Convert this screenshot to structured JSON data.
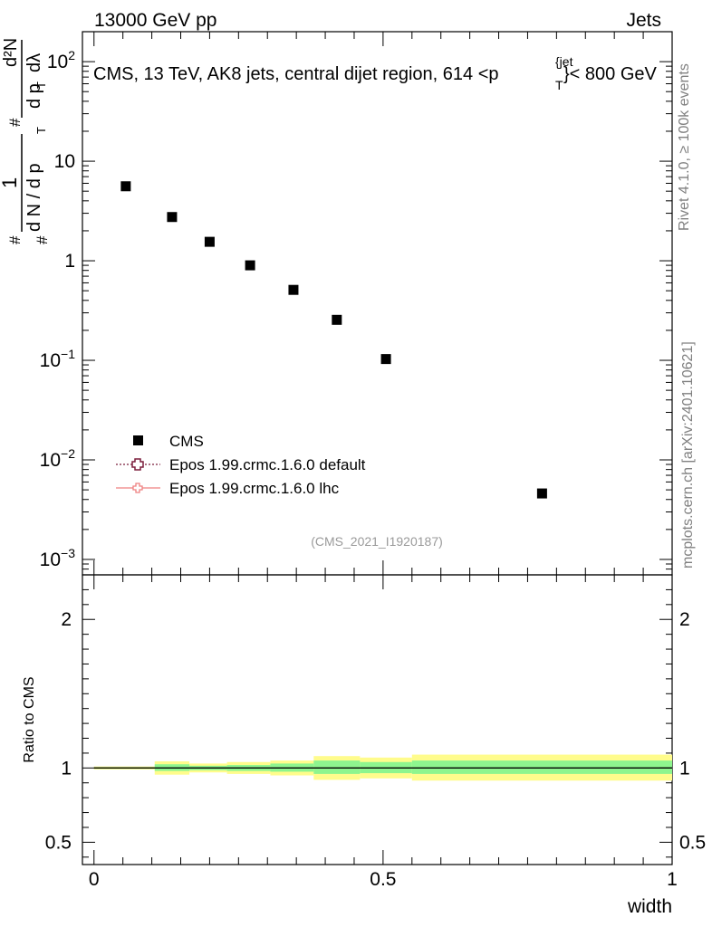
{
  "header": {
    "left": "13000 GeV pp",
    "right": "Jets"
  },
  "side_labels": {
    "rivet": "Rivet 4.1.0, ≥ 100k events",
    "mcplots": "mcplots.cern.ch [arXiv:2401.10621]"
  },
  "colors": {
    "data": "#000000",
    "epos_default": "#7b1d3c",
    "epos_lhc": "#ef8080",
    "band_inner": "#8ef58e",
    "band_outer": "#fffc8c"
  },
  "chart_data": [
    {
      "type": "scatter",
      "panel": "main",
      "title": "CMS, 13 TeV, AK8 jets, central dijet region, 614 <p_T^{jet}< 800 GeV",
      "title_parts": [
        "CMS, 13 TeV, AK8 jets, central dijet region, 614 <p",
        "{jet",
        "T",
        "}< 800 GeV"
      ],
      "ylabel": "1/(dN/dp_T) d²N/(dp_T dλ)",
      "ylabel_parts": {
        "frac1_num": "1",
        "frac1_den": "d N / d p",
        "frac2_num": "d²N",
        "frac2_den": "d p",
        "frac2_den_tail": "dλ",
        "sub": "T",
        "hash": "#"
      },
      "xlim": [
        -0.02,
        1.0
      ],
      "ylim": [
        0.0007,
        200
      ],
      "yscale": "log",
      "y_ticks": [
        {
          "value": 100,
          "mantissa": "10",
          "exp": "2"
        },
        {
          "value": 10,
          "mantissa": "10",
          "exp": ""
        },
        {
          "value": 1,
          "mantissa": "1",
          "exp": ""
        },
        {
          "value": 0.1,
          "mantissa": "10",
          "exp": "−1"
        },
        {
          "value": 0.01,
          "mantissa": "10",
          "exp": "−2"
        },
        {
          "value": 0.001,
          "mantissa": "10",
          "exp": "−3"
        }
      ],
      "series": [
        {
          "name": "CMS",
          "x": [
            0.055,
            0.135,
            0.2,
            0.27,
            0.345,
            0.42,
            0.505,
            0.775
          ],
          "y": [
            5.6,
            2.75,
            1.55,
            0.9,
            0.51,
            0.255,
            0.103,
            0.0046
          ]
        },
        {
          "name": "Epos 1.99.crmc.1.6.0 default",
          "x": [],
          "y": []
        },
        {
          "name": "Epos 1.99.crmc.1.6.0 lhc",
          "x": [],
          "y": []
        }
      ],
      "legend": [
        "CMS",
        "Epos 1.99.crmc.1.6.0 default",
        "Epos 1.99.crmc.1.6.0 lhc"
      ],
      "legend_position": "bottom-left",
      "watermark": "(CMS_2021_I1920187)"
    },
    {
      "type": "area",
      "panel": "ratio",
      "ylabel": "Ratio to CMS",
      "xlabel": "width",
      "xlim": [
        -0.02,
        1.0
      ],
      "ylim": [
        0.35,
        2.3
      ],
      "x_tick_labels": [
        {
          "value": 0,
          "label": "0"
        },
        {
          "value": 0.5,
          "label": "0.5"
        },
        {
          "value": 1,
          "label": "1"
        }
      ],
      "y_tick_labels": [
        {
          "value": 2,
          "label": "2"
        },
        {
          "value": 1,
          "label": "1"
        },
        {
          "value": 0.5,
          "label": "0.5"
        }
      ],
      "bins": [
        {
          "xlo": 0.0,
          "xhi": 0.105,
          "inner": [
            0.995,
            1.005
          ],
          "outer": [
            0.99,
            1.01
          ]
        },
        {
          "xlo": 0.105,
          "xhi": 0.165,
          "inner": [
            0.98,
            1.025
          ],
          "outer": [
            0.955,
            1.045
          ]
        },
        {
          "xlo": 0.165,
          "xhi": 0.23,
          "inner": [
            0.985,
            1.015
          ],
          "outer": [
            0.97,
            1.03
          ]
        },
        {
          "xlo": 0.23,
          "xhi": 0.305,
          "inner": [
            0.98,
            1.02
          ],
          "outer": [
            0.96,
            1.04
          ]
        },
        {
          "xlo": 0.305,
          "xhi": 0.38,
          "inner": [
            0.975,
            1.03
          ],
          "outer": [
            0.95,
            1.05
          ]
        },
        {
          "xlo": 0.38,
          "xhi": 0.46,
          "inner": [
            0.96,
            1.05
          ],
          "outer": [
            0.92,
            1.08
          ]
        },
        {
          "xlo": 0.46,
          "xhi": 0.55,
          "inner": [
            0.965,
            1.04
          ],
          "outer": [
            0.93,
            1.07
          ]
        },
        {
          "xlo": 0.55,
          "xhi": 1.0,
          "inner": [
            0.96,
            1.05
          ],
          "outer": [
            0.915,
            1.09
          ]
        }
      ]
    }
  ]
}
